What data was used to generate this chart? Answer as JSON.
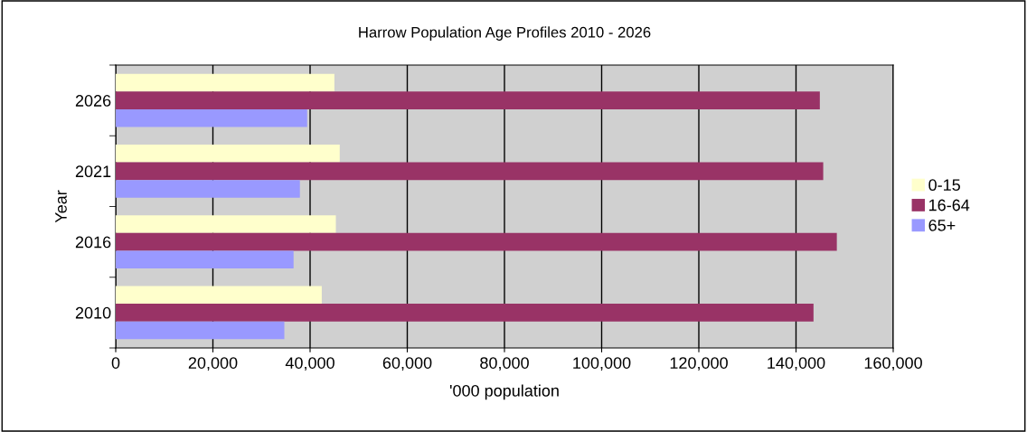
{
  "chart_data": {
    "type": "bar",
    "orientation": "horizontal",
    "title": "Harrow Population Age Profiles 2010 - 2026",
    "xlabel": "'000 population",
    "ylabel": "Year",
    "categories": [
      "2026",
      "2021",
      "2016",
      "2010"
    ],
    "series": [
      {
        "name": "0-15",
        "color": "#ffffcc",
        "values": [
          45000,
          46100,
          45300,
          42400
        ]
      },
      {
        "name": "16-64",
        "color": "#993366",
        "values": [
          144900,
          145600,
          148400,
          143600
        ]
      },
      {
        "name": "65+",
        "color": "#9999ff",
        "values": [
          39400,
          37900,
          36600,
          34700
        ]
      }
    ],
    "xlim": [
      0,
      160000
    ],
    "xticks": [
      {
        "value": 0,
        "label": "0"
      },
      {
        "value": 20000,
        "label": "20,000"
      },
      {
        "value": 40000,
        "label": "40,000"
      },
      {
        "value": 60000,
        "label": "60,000"
      },
      {
        "value": 80000,
        "label": "80,000"
      },
      {
        "value": 100000,
        "label": "100,000"
      },
      {
        "value": 120000,
        "label": "120,000"
      },
      {
        "value": 140000,
        "label": "140,000"
      },
      {
        "value": 160000,
        "label": "160,000"
      }
    ],
    "grid": "x",
    "legend": "right"
  }
}
